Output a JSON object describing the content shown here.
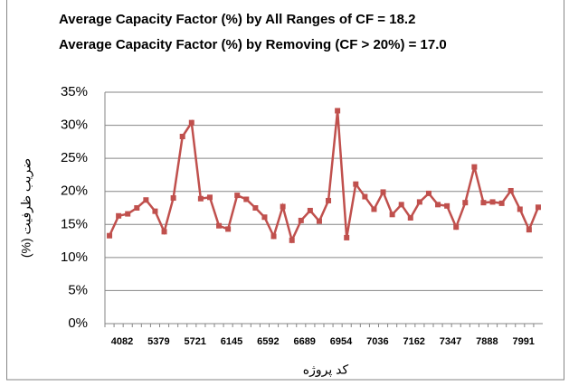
{
  "chart_data": {
    "type": "line",
    "title": "Average Capacity Factor (%) by All Ranges of CF = 18.2",
    "subtitle": "Average Capacity Factor (%) by Removing (CF > 20%) = 17.0",
    "x_label": "کد پروژه",
    "y_label": "ضریب ظرفیت (%)",
    "categories": [
      "4082",
      null,
      null,
      null,
      "5379",
      null,
      null,
      null,
      "5721",
      null,
      null,
      null,
      "6145",
      null,
      null,
      null,
      "6592",
      null,
      null,
      null,
      "6689",
      null,
      null,
      null,
      "6954",
      null,
      null,
      null,
      "7036",
      null,
      null,
      null,
      "7162",
      null,
      null,
      null,
      "7347",
      null,
      null,
      null,
      "7888",
      null,
      null,
      null,
      "7991",
      null,
      null,
      null
    ],
    "series": [
      {
        "name": "CF",
        "color": "#c0504d",
        "values": [
          13.3,
          16.3,
          16.6,
          17.5,
          18.7,
          17.0,
          13.9,
          19.0,
          28.3,
          30.4,
          18.9,
          19.1,
          14.8,
          14.3,
          19.4,
          18.8,
          17.5,
          16.1,
          13.2,
          17.7,
          12.6,
          15.6,
          17.1,
          15.5,
          18.6,
          32.2,
          13.0,
          21.1,
          19.2,
          17.3,
          19.9,
          16.5,
          18.0,
          16.0,
          18.4,
          19.7,
          18.0,
          17.8,
          14.6,
          18.3,
          23.7,
          18.3,
          18.4,
          18.2,
          20.1,
          17.3,
          14.2,
          17.6
        ]
      }
    ],
    "ylim": [
      0,
      35
    ],
    "yticks": [
      {
        "value": 0,
        "label": "0%"
      },
      {
        "value": 5,
        "label": "5%"
      },
      {
        "value": 10,
        "label": "10%"
      },
      {
        "value": 15,
        "label": "15%"
      },
      {
        "value": 20,
        "label": "20%"
      },
      {
        "value": 25,
        "label": "25%"
      },
      {
        "value": 30,
        "label": "30%"
      },
      {
        "value": 35,
        "label": "35%"
      }
    ],
    "grid": true
  }
}
